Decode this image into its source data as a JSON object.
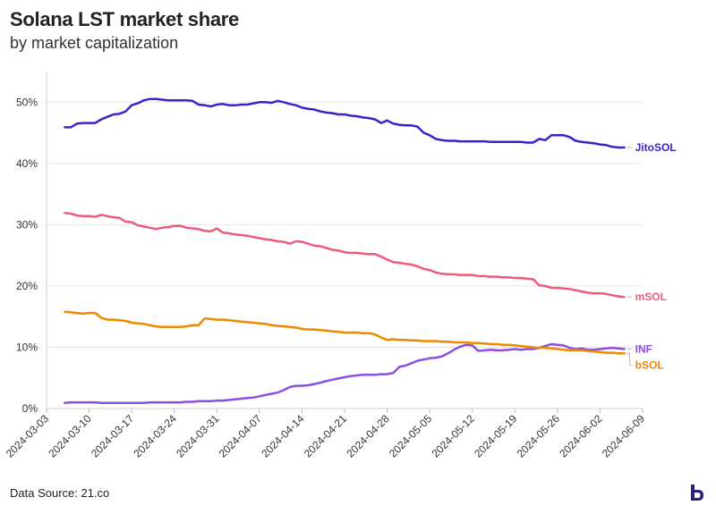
{
  "title": "Solana LST market share",
  "subtitle": "by market capitalization",
  "source": "Data Source: 21.co",
  "chart_data": {
    "type": "line",
    "title": "Solana LST market share",
    "subtitle": "by market capitalization",
    "xlabel": "",
    "ylabel": "",
    "x_unit": "days since 2024-03-03",
    "xlim": [
      0,
      98
    ],
    "ylim": [
      0,
      55
    ],
    "y_ticks": [
      0,
      10,
      20,
      30,
      40,
      50
    ],
    "y_tick_labels": [
      "0%",
      "10%",
      "20%",
      "30%",
      "40%",
      "50%"
    ],
    "x_ticks": [
      0,
      7,
      14,
      21,
      28,
      35,
      42,
      49,
      56,
      63,
      70,
      77,
      84,
      91,
      98
    ],
    "x_tick_labels": [
      "2024-03-03",
      "2024-03-10",
      "2024-03-17",
      "2024-03-24",
      "2024-03-31",
      "2024-04-07",
      "2024-04-14",
      "2024-04-21",
      "2024-04-28",
      "2024-05-05",
      "2024-05-12",
      "2024-05-19",
      "2024-05-26",
      "2024-06-02",
      "2024-06-09"
    ],
    "grid": "horizontal",
    "legend": "direct labels at right end of lines",
    "series": [
      {
        "name": "JitoSOL",
        "color": "#3b22c9",
        "x": [
          3,
          4,
          5,
          6,
          7,
          8,
          9,
          10,
          11,
          12,
          13,
          14,
          15,
          16,
          17,
          18,
          19,
          20,
          21,
          22,
          23,
          24,
          25,
          26,
          27,
          28,
          29,
          30,
          31,
          32,
          33,
          34,
          35,
          36,
          37,
          38,
          39,
          40,
          41,
          42,
          43,
          44,
          45,
          46,
          47,
          48,
          49,
          50,
          51,
          52,
          53,
          54,
          55,
          56,
          57,
          58,
          59,
          60,
          61,
          62,
          63,
          64,
          65,
          66,
          67,
          68,
          69,
          70,
          71,
          72,
          73,
          74,
          75,
          76,
          77,
          78,
          79,
          80,
          81,
          82,
          83,
          84,
          85,
          86,
          87,
          88,
          89,
          90,
          91,
          92,
          93,
          94,
          95
        ],
        "values": [
          45.9,
          45.9,
          46.5,
          46.6,
          46.6,
          46.6,
          47.2,
          47.6,
          48.0,
          48.1,
          48.5,
          49.5,
          49.8,
          50.3,
          50.5,
          50.5,
          50.4,
          50.3,
          50.3,
          50.3,
          50.3,
          50.2,
          49.6,
          49.5,
          49.3,
          49.6,
          49.7,
          49.5,
          49.5,
          49.6,
          49.6,
          49.8,
          50.0,
          50.0,
          49.9,
          50.2,
          50.0,
          49.7,
          49.5,
          49.1,
          48.9,
          48.8,
          48.5,
          48.3,
          48.2,
          48.0,
          48.0,
          47.8,
          47.7,
          47.5,
          47.4,
          47.2,
          46.6,
          47.0,
          46.5,
          46.3,
          46.2,
          46.2,
          46.0,
          45.0,
          44.6,
          44.0,
          43.8,
          43.7,
          43.7,
          43.6,
          43.6,
          43.6,
          43.6,
          43.6,
          43.5,
          43.5,
          43.5,
          43.5,
          43.5,
          43.5,
          43.4,
          43.4,
          44.0,
          43.8,
          44.6,
          44.6,
          44.6,
          44.3,
          43.7,
          43.5,
          43.4,
          43.3,
          43.1,
          43.0,
          42.7,
          42.6,
          42.6
        ]
      },
      {
        "name": "mSOL",
        "color": "#ee5a7e",
        "x": [
          3,
          4,
          5,
          6,
          7,
          8,
          9,
          10,
          11,
          12,
          13,
          14,
          15,
          16,
          17,
          18,
          19,
          20,
          21,
          22,
          23,
          24,
          25,
          26,
          27,
          28,
          29,
          30,
          31,
          32,
          33,
          34,
          35,
          36,
          37,
          38,
          39,
          40,
          41,
          42,
          43,
          44,
          45,
          46,
          47,
          48,
          49,
          50,
          51,
          52,
          53,
          54,
          55,
          56,
          57,
          58,
          59,
          60,
          61,
          62,
          63,
          64,
          65,
          66,
          67,
          68,
          69,
          70,
          71,
          72,
          73,
          74,
          75,
          76,
          77,
          78,
          79,
          80,
          81,
          82,
          83,
          84,
          85,
          86,
          87,
          88,
          89,
          90,
          91,
          92,
          93,
          94,
          95
        ],
        "values": [
          31.9,
          31.8,
          31.5,
          31.4,
          31.4,
          31.3,
          31.6,
          31.4,
          31.2,
          31.1,
          30.5,
          30.4,
          29.9,
          29.7,
          29.5,
          29.3,
          29.5,
          29.6,
          29.8,
          29.8,
          29.5,
          29.4,
          29.3,
          29.0,
          28.9,
          29.4,
          28.7,
          28.6,
          28.4,
          28.3,
          28.2,
          28.0,
          27.8,
          27.6,
          27.5,
          27.3,
          27.2,
          26.9,
          27.3,
          27.2,
          26.9,
          26.6,
          26.5,
          26.2,
          25.9,
          25.8,
          25.5,
          25.4,
          25.4,
          25.3,
          25.2,
          25.2,
          24.8,
          24.3,
          23.9,
          23.8,
          23.6,
          23.5,
          23.2,
          22.8,
          22.6,
          22.2,
          22.0,
          21.9,
          21.9,
          21.8,
          21.8,
          21.8,
          21.6,
          21.6,
          21.5,
          21.5,
          21.4,
          21.4,
          21.3,
          21.3,
          21.2,
          21.1,
          20.1,
          20.0,
          19.7,
          19.7,
          19.6,
          19.5,
          19.3,
          19.1,
          18.9,
          18.8,
          18.8,
          18.7,
          18.5,
          18.3,
          18.2
        ]
      },
      {
        "name": "INF",
        "color": "#8b4fe0",
        "x": [
          3,
          4,
          5,
          6,
          7,
          8,
          9,
          10,
          11,
          12,
          13,
          14,
          15,
          16,
          17,
          18,
          19,
          20,
          21,
          22,
          23,
          24,
          25,
          26,
          27,
          28,
          29,
          30,
          31,
          32,
          33,
          34,
          35,
          36,
          37,
          38,
          39,
          40,
          41,
          42,
          43,
          44,
          45,
          46,
          47,
          48,
          49,
          50,
          51,
          52,
          53,
          54,
          55,
          56,
          57,
          58,
          59,
          60,
          61,
          62,
          63,
          64,
          65,
          66,
          67,
          68,
          69,
          70,
          71,
          72,
          73,
          74,
          75,
          76,
          77,
          78,
          79,
          80,
          81,
          82,
          83,
          84,
          85,
          86,
          87,
          88,
          89,
          90,
          91,
          92,
          93,
          94,
          95
        ],
        "values": [
          0.9,
          1.0,
          1.0,
          1.0,
          1.0,
          1.0,
          0.9,
          0.9,
          0.9,
          0.9,
          0.9,
          0.9,
          0.9,
          0.9,
          1.0,
          1.0,
          1.0,
          1.0,
          1.0,
          1.0,
          1.1,
          1.1,
          1.2,
          1.2,
          1.2,
          1.3,
          1.3,
          1.4,
          1.5,
          1.6,
          1.7,
          1.8,
          2.0,
          2.2,
          2.4,
          2.6,
          3.0,
          3.5,
          3.7,
          3.7,
          3.8,
          4.0,
          4.2,
          4.5,
          4.7,
          4.9,
          5.1,
          5.3,
          5.4,
          5.5,
          5.5,
          5.5,
          5.6,
          5.6,
          5.8,
          6.8,
          7.0,
          7.4,
          7.8,
          8.0,
          8.2,
          8.3,
          8.5,
          9.0,
          9.6,
          10.1,
          10.4,
          10.3,
          9.4,
          9.5,
          9.6,
          9.5,
          9.5,
          9.6,
          9.7,
          9.6,
          9.7,
          9.7,
          9.9,
          10.2,
          10.5,
          10.4,
          10.3,
          9.9,
          9.7,
          9.8,
          9.6,
          9.6,
          9.7,
          9.8,
          9.9,
          9.8,
          9.7
        ]
      },
      {
        "name": "bSOL",
        "color": "#ef8a00",
        "x": [
          3,
          4,
          5,
          6,
          7,
          8,
          9,
          10,
          11,
          12,
          13,
          14,
          15,
          16,
          17,
          18,
          19,
          20,
          21,
          22,
          23,
          24,
          25,
          26,
          27,
          28,
          29,
          30,
          31,
          32,
          33,
          34,
          35,
          36,
          37,
          38,
          39,
          40,
          41,
          42,
          43,
          44,
          45,
          46,
          47,
          48,
          49,
          50,
          51,
          52,
          53,
          54,
          55,
          56,
          57,
          58,
          59,
          60,
          61,
          62,
          63,
          64,
          65,
          66,
          67,
          68,
          69,
          70,
          71,
          72,
          73,
          74,
          75,
          76,
          77,
          78,
          79,
          80,
          81,
          82,
          83,
          84,
          85,
          86,
          87,
          88,
          89,
          90,
          91,
          92,
          93,
          94,
          95
        ],
        "values": [
          15.8,
          15.7,
          15.6,
          15.5,
          15.6,
          15.6,
          14.8,
          14.5,
          14.5,
          14.4,
          14.3,
          14.0,
          13.9,
          13.8,
          13.6,
          13.4,
          13.3,
          13.3,
          13.3,
          13.3,
          13.4,
          13.6,
          13.6,
          14.7,
          14.6,
          14.5,
          14.5,
          14.4,
          14.3,
          14.2,
          14.1,
          14.0,
          13.9,
          13.8,
          13.6,
          13.5,
          13.4,
          13.3,
          13.2,
          13.0,
          12.9,
          12.9,
          12.8,
          12.7,
          12.6,
          12.5,
          12.4,
          12.4,
          12.4,
          12.3,
          12.3,
          12.1,
          11.6,
          11.2,
          11.3,
          11.2,
          11.2,
          11.1,
          11.1,
          11.0,
          11.0,
          11.0,
          10.9,
          10.9,
          10.8,
          10.8,
          10.8,
          10.7,
          10.7,
          10.6,
          10.5,
          10.5,
          10.4,
          10.4,
          10.3,
          10.2,
          10.1,
          10.0,
          9.9,
          9.9,
          9.8,
          9.7,
          9.6,
          9.5,
          9.5,
          9.5,
          9.4,
          9.3,
          9.2,
          9.1,
          9.1,
          9.0,
          9.0
        ]
      }
    ]
  }
}
